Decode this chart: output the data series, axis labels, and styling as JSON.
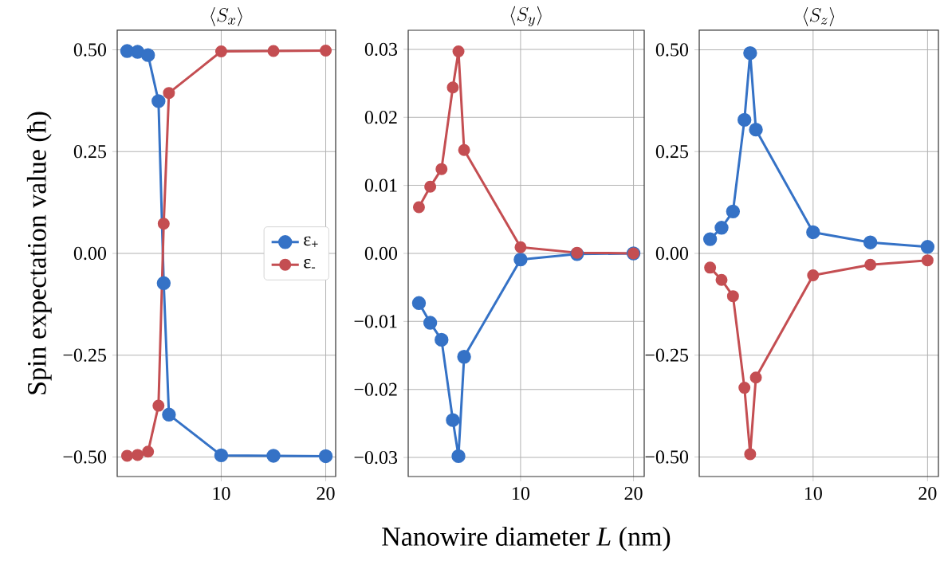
{
  "chart_data": [
    {
      "type": "line",
      "title": "\\langle S_x \\rangle",
      "ylabel": "Spin expectation value (ħ)",
      "x": [
        1,
        2,
        3,
        4,
        4.5,
        5,
        10,
        15,
        20
      ],
      "marker": "circle",
      "line_style": "solid",
      "grid": true,
      "legend": "right",
      "xlim": [
        0.05,
        20.95
      ],
      "xticks": [
        10,
        20
      ],
      "ylim": [
        -0.548,
        0.548
      ],
      "yticks": [
        {
          "value": -0.5,
          "label": "−0.50"
        },
        {
          "value": -0.25,
          "label": "−0.25"
        },
        {
          "value": 0,
          "label": "0.00"
        },
        {
          "value": 0.25,
          "label": "0.25"
        },
        {
          "value": 0.5,
          "label": "0.50"
        }
      ],
      "series": [
        {
          "name": "ε$_{+}$",
          "color": "#3572c6",
          "values": [
            0.497,
            0.495,
            0.487,
            0.374,
            -0.073,
            -0.396,
            -0.496,
            -0.497,
            -0.498
          ]
        },
        {
          "name": "ε$_{-}$",
          "color": "#c44e52",
          "values": [
            -0.497,
            -0.495,
            -0.487,
            -0.374,
            0.073,
            0.394,
            0.496,
            0.497,
            0.498
          ]
        }
      ]
    },
    {
      "type": "line",
      "title": "\\langle S_y \\rangle",
      "xlabel": "Nanowire diameter *L* (nm)",
      "x": [
        1,
        2,
        3,
        4,
        4.5,
        5,
        10,
        15,
        20
      ],
      "marker": "circle",
      "line_style": "solid",
      "grid": true,
      "xlim": [
        0.05,
        20.95
      ],
      "xticks": [
        10,
        20
      ],
      "ylim": [
        -0.0328,
        0.0328
      ],
      "yticks": [
        {
          "value": -0.03,
          "label": "−0.03"
        },
        {
          "value": -0.02,
          "label": "−0.02"
        },
        {
          "value": -0.01,
          "label": "−0.01"
        },
        {
          "value": 0,
          "label": "0.00"
        },
        {
          "value": 0.01,
          "label": "0.01"
        },
        {
          "value": 0.02,
          "label": "0.02"
        },
        {
          "value": 0.03,
          "label": "0.03"
        }
      ],
      "series": [
        {
          "color": "#3572c6",
          "values": [
            -0.0073,
            -0.0102,
            -0.0127,
            -0.0245,
            -0.0298,
            -0.0152,
            -0.0009,
            -0.0001,
            0
          ]
        },
        {
          "color": "#c44e52",
          "values": [
            0.0068,
            0.0098,
            0.0124,
            0.0244,
            0.0297,
            0.0152,
            0.0009,
            0.0001,
            0
          ]
        }
      ]
    },
    {
      "type": "line",
      "title": "\\langle S_z \\rangle",
      "x": [
        1,
        2,
        3,
        4,
        4.5,
        5,
        10,
        15,
        20
      ],
      "marker": "circle",
      "line_style": "solid",
      "grid": true,
      "xlim": [
        0.05,
        20.95
      ],
      "xticks": [
        10,
        20
      ],
      "ylim": [
        -0.548,
        0.548
      ],
      "yticks": [
        {
          "value": -0.5,
          "label": "−0.50"
        },
        {
          "value": -0.25,
          "label": "−0.25"
        },
        {
          "value": 0,
          "label": "0.00"
        },
        {
          "value": 0.25,
          "label": "0.25"
        },
        {
          "value": 0.5,
          "label": "0.50"
        }
      ],
      "series": [
        {
          "color": "#3572c6",
          "values": [
            0.035,
            0.063,
            0.103,
            0.328,
            0.492,
            0.304,
            0.052,
            0.027,
            0.016
          ]
        },
        {
          "color": "#c44e52",
          "values": [
            -0.035,
            -0.065,
            -0.105,
            -0.33,
            -0.493,
            -0.305,
            -0.054,
            -0.028,
            -0.017
          ]
        }
      ]
    }
  ]
}
